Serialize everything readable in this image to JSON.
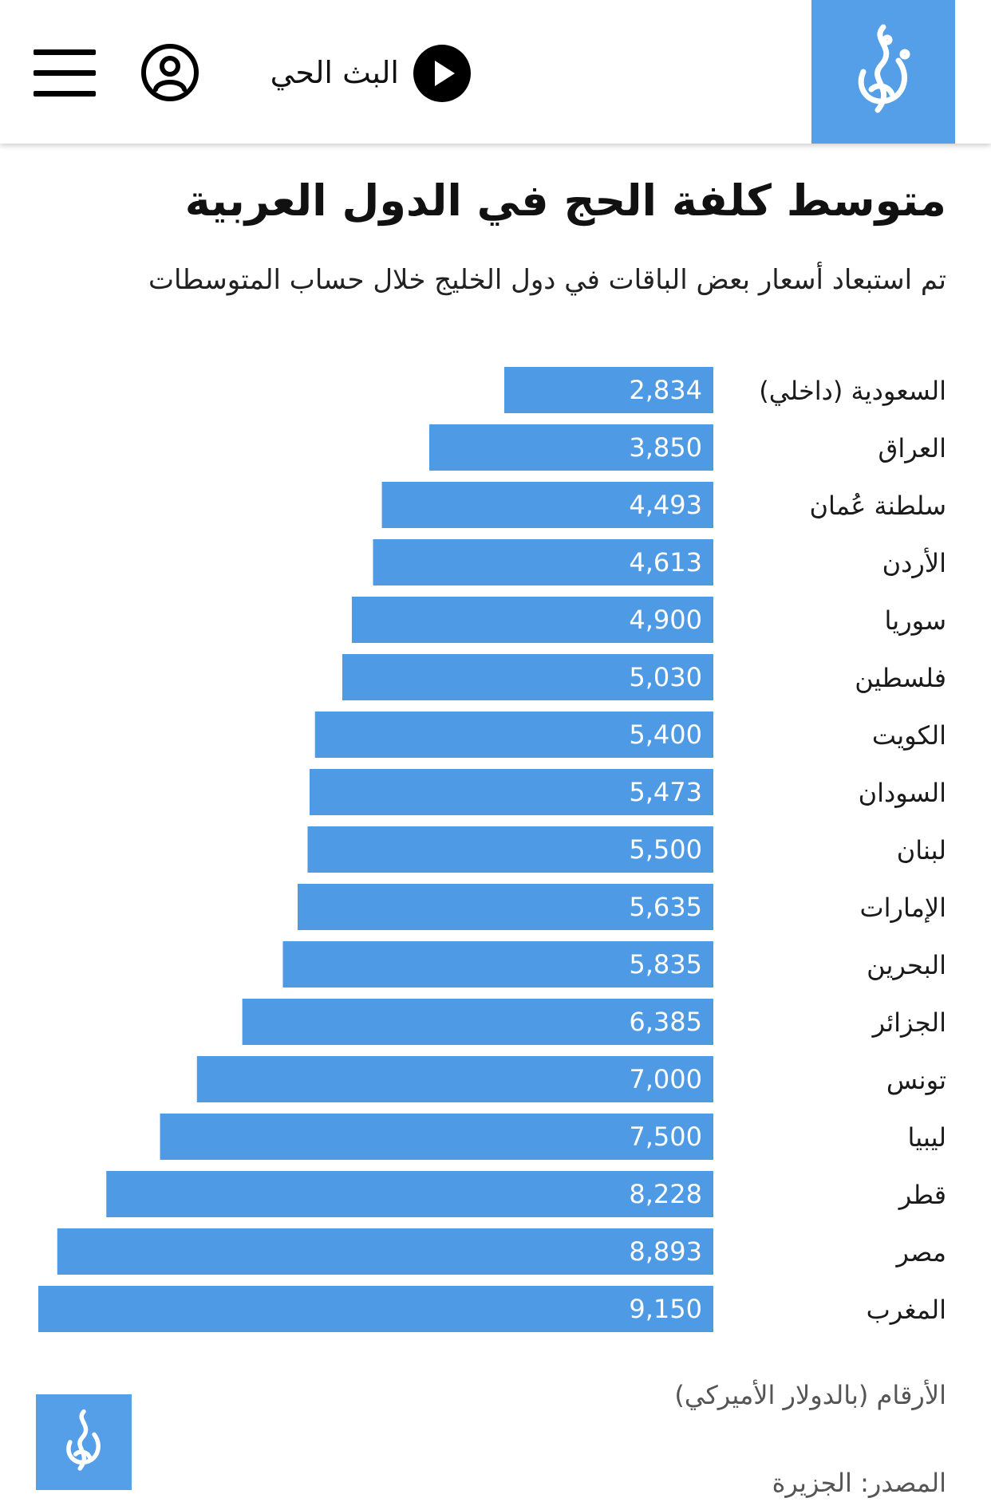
{
  "header": {
    "live_label": "البث الحي",
    "icons": {
      "menu": "hamburger-menu-icon",
      "profile": "user-profile-icon",
      "play": "play-icon",
      "logo": "aljazeera-logo"
    },
    "brand_color": "#559ee8"
  },
  "article": {
    "title": "متوسط كلفة الحج في الدول العربية",
    "subtitle": "تم استبعاد أسعار بعض الباقات في دول الخليج خلال حساب المتوسطات"
  },
  "chart_data": {
    "type": "bar",
    "orientation": "horizontal",
    "bar_color": "#4f9ae5",
    "categories": [
      "السعودية (داخلي)",
      "العراق",
      "سلطنة عُمان",
      "الأردن",
      "سوريا",
      "فلسطين",
      "الكويت",
      "السودان",
      "لبنان",
      "الإمارات",
      "البحرين",
      "الجزائر",
      "تونس",
      "ليبيا",
      "قطر",
      "مصر",
      "المغرب"
    ],
    "values": [
      2834,
      3850,
      4493,
      4613,
      4900,
      5030,
      5400,
      5473,
      5500,
      5635,
      5835,
      6385,
      7000,
      7500,
      8228,
      8893,
      9150
    ],
    "value_labels": [
      "2,834",
      "3,850",
      "4,493",
      "4,613",
      "4,900",
      "5,030",
      "5,400",
      "5,473",
      "5,500",
      "5,635",
      "5,835",
      "6,385",
      "7,000",
      "7,500",
      "8,228",
      "8,893",
      "9,150"
    ],
    "xlim": [
      0,
      9150
    ],
    "grid": false
  },
  "footer": {
    "units": "الأرقام (بالدولار الأميركي)",
    "source": "المصدر: الجزيرة"
  }
}
